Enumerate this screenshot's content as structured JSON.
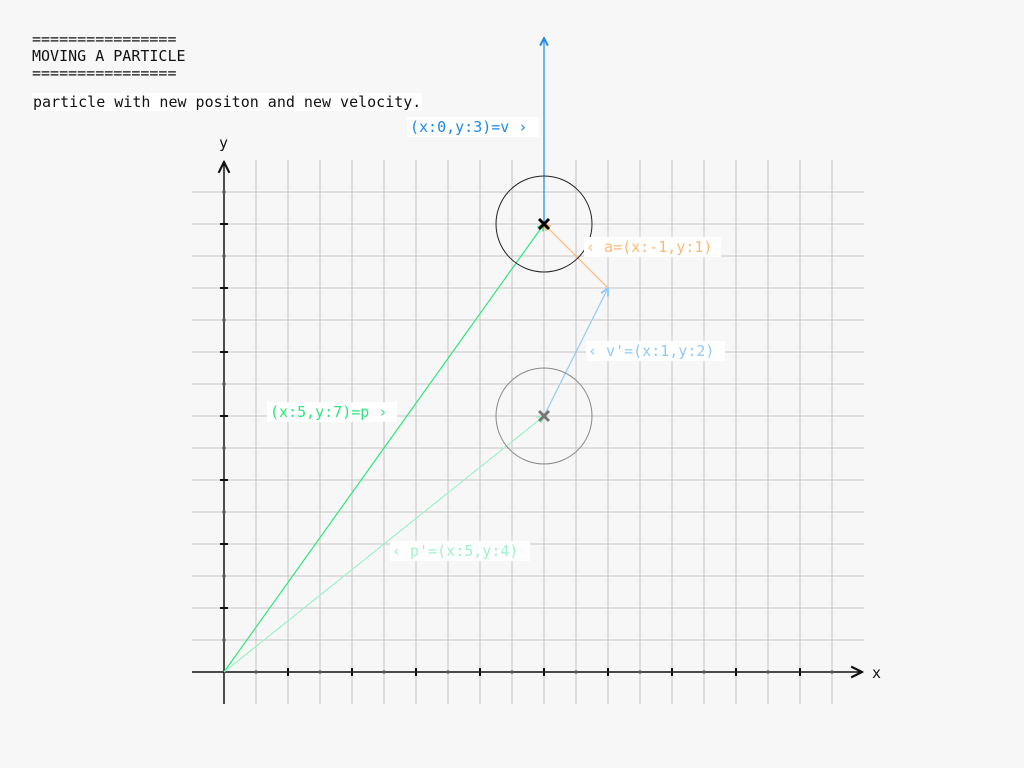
{
  "header": {
    "rule_top": "================",
    "title": "MOVING A PARTICLE",
    "rule_bottom": "================"
  },
  "subtitle": "particle with new positon and new velocity.",
  "axes": {
    "x_label": "x",
    "y_label": "y",
    "x_range": [
      0,
      20
    ],
    "y_range": [
      0,
      16
    ]
  },
  "colors": {
    "v": "#1e88e5",
    "v_prime": "#90caf9",
    "a": "#ffb877",
    "p": "#2ee67a",
    "p_prime": "#9ff2c8",
    "grid": "#c6c6c6",
    "axis": "#111111"
  },
  "vectors": [
    {
      "id": "p",
      "from": [
        0,
        0
      ],
      "to": [
        10,
        14
      ],
      "color_key": "p"
    },
    {
      "id": "p_prime",
      "from": [
        0,
        0
      ],
      "to": [
        10,
        8
      ],
      "color_key": "p_prime"
    },
    {
      "id": "v_prime",
      "from": [
        10,
        8
      ],
      "to": [
        12,
        12
      ],
      "color_key": "v_prime"
    },
    {
      "id": "a",
      "from": [
        12,
        12
      ],
      "to": [
        10,
        14
      ],
      "color_key": "a"
    },
    {
      "id": "v",
      "from": [
        10,
        14
      ],
      "to": [
        10,
        20
      ],
      "color_key": "v"
    }
  ],
  "particles": [
    {
      "id": "new",
      "center": [
        10,
        14
      ],
      "radius": 1.5,
      "marker_color": "#000000",
      "circle_color": "#222222"
    },
    {
      "id": "old",
      "center": [
        10,
        8
      ],
      "radius": 1.5,
      "marker_color": "#777777",
      "circle_color": "#888888"
    }
  ],
  "labels": {
    "v": "(x:0,y:3)=v ›",
    "a": "‹ a=(x:-1,y:1)",
    "v_prime": "‹ v'=(x:1,y:2)",
    "p": "(x:5,y:7)=p ›",
    "p_prime": "‹ p'=(x:5,y:4)"
  }
}
